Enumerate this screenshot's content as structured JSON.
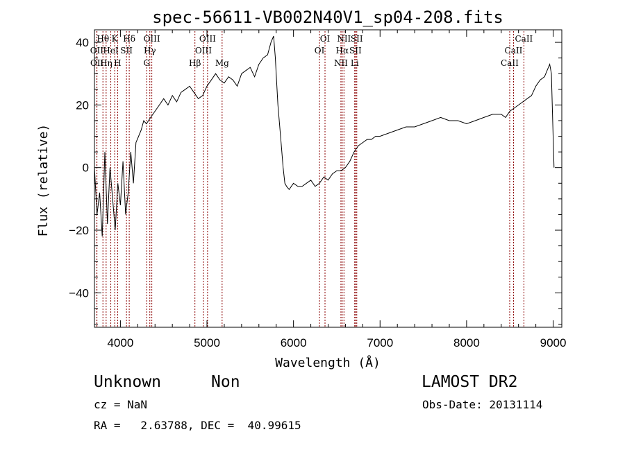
{
  "chart_data": {
    "type": "line",
    "title": "spec-56611-VB002N40V1_sp04-208.fits",
    "xlabel": "Wavelength (Å)",
    "ylabel": "Flux (relative)",
    "xlim": [
      3700,
      9100
    ],
    "ylim": [
      -51,
      44
    ],
    "xticks": [
      "4000",
      "5000",
      "6000",
      "7000",
      "8000",
      "9000"
    ],
    "xtick_values": [
      4000,
      5000,
      6000,
      7000,
      8000,
      9000
    ],
    "yticks": [
      "40",
      "20",
      "0",
      "−20",
      "−40"
    ],
    "ytick_values": [
      40,
      20,
      0,
      -20,
      -40
    ],
    "grid": false,
    "line_color": "#000000",
    "marker_color": "#8b0000",
    "series": [
      {
        "x": [
          3700,
          3730,
          3760,
          3790,
          3820,
          3850,
          3880,
          3910,
          3940,
          3970,
          4000,
          4030,
          4060,
          4090,
          4120,
          4150,
          4180,
          4210,
          4240,
          4270,
          4300,
          4350,
          4400,
          4450,
          4500,
          4550,
          4600,
          4650,
          4700,
          4750,
          4800,
          4850,
          4900,
          4950,
          5000,
          5050,
          5100,
          5150,
          5200,
          5250,
          5300,
          5350,
          5400,
          5450,
          5500,
          5550,
          5600,
          5650,
          5700,
          5740,
          5770,
          5790,
          5800,
          5820,
          5850,
          5880,
          5900,
          5920,
          5950,
          6000,
          6050,
          6100,
          6150,
          6200,
          6250,
          6300,
          6350,
          6400,
          6450,
          6500,
          6550,
          6600,
          6650,
          6700,
          6750,
          6800,
          6850,
          6900,
          6950,
          7000,
          7100,
          7200,
          7300,
          7400,
          7500,
          7600,
          7700,
          7800,
          7900,
          8000,
          8100,
          8200,
          8300,
          8400,
          8450,
          8500,
          8550,
          8600,
          8650,
          8700,
          8750,
          8800,
          8850,
          8900,
          8930,
          8960,
          8980,
          9000,
          9010
        ],
        "y": [
          0,
          -15,
          -8,
          -22,
          5,
          -18,
          0,
          -10,
          -20,
          -5,
          -12,
          2,
          -15,
          -8,
          5,
          -5,
          8,
          10,
          12,
          15,
          14,
          16,
          18,
          20,
          22,
          20,
          23,
          21,
          24,
          25,
          26,
          24,
          22,
          23,
          26,
          28,
          30,
          28,
          27,
          29,
          28,
          26,
          30,
          31,
          32,
          29,
          33,
          35,
          36,
          40,
          42,
          35,
          30,
          20,
          10,
          0,
          -5,
          -6,
          -7,
          -5,
          -6,
          -6,
          -5,
          -4,
          -6,
          -5,
          -3,
          -4,
          -2,
          -1,
          -1,
          0,
          2,
          5,
          7,
          8,
          9,
          9,
          10,
          10,
          11,
          12,
          13,
          13,
          14,
          15,
          16,
          15,
          15,
          14,
          15,
          16,
          17,
          17,
          16,
          18,
          19,
          20,
          21,
          22,
          23,
          26,
          28,
          29,
          31,
          33,
          30,
          10,
          0
        ]
      }
    ],
    "emission_lines": [
      {
        "label": "Hθ",
        "x": 3798,
        "row": 1
      },
      {
        "label": "Hη",
        "x": 3835,
        "row": 3
      },
      {
        "label": "OII",
        "x": 3727,
        "row": 2
      },
      {
        "label": "OII",
        "x": 3729,
        "row": 3
      },
      {
        "label": "HeI",
        "x": 3889,
        "row": 2
      },
      {
        "label": "K",
        "x": 3934,
        "row": 1
      },
      {
        "label": "H",
        "x": 3968,
        "row": 3
      },
      {
        "label": "SII",
        "x": 4070,
        "row": 2
      },
      {
        "label": "Hδ",
        "x": 4102,
        "row": 1
      },
      {
        "label": "G",
        "x": 4304,
        "row": 3
      },
      {
        "label": "Hγ",
        "x": 4340,
        "row": 2
      },
      {
        "label": "OIII",
        "x": 4363,
        "row": 1
      },
      {
        "label": "Hβ",
        "x": 4861,
        "row": 3
      },
      {
        "label": "OIII",
        "x": 4959,
        "row": 2
      },
      {
        "label": "OIII",
        "x": 5007,
        "row": 1
      },
      {
        "label": "Mg",
        "x": 5175,
        "row": 3
      },
      {
        "label": "OI",
        "x": 6300,
        "row": 2
      },
      {
        "label": "OI",
        "x": 6364,
        "row": 1
      },
      {
        "label": "NII",
        "x": 6548,
        "row": 3
      },
      {
        "label": "Hα",
        "x": 6563,
        "row": 2
      },
      {
        "label": "NII",
        "x": 6583,
        "row": 1
      },
      {
        "label": "Li",
        "x": 6707,
        "row": 3
      },
      {
        "label": "SII",
        "x": 6716,
        "row": 2
      },
      {
        "label": "SII",
        "x": 6731,
        "row": 1
      },
      {
        "label": "CaII",
        "x": 8498,
        "row": 3
      },
      {
        "label": "CaII",
        "x": 8542,
        "row": 2
      },
      {
        "label": "CaII",
        "x": 8662,
        "row": 1
      }
    ]
  },
  "info": {
    "class_label": "Unknown",
    "subclass_label": "Non",
    "survey_label": "LAMOST DR2",
    "cz_text": "cz = NaN",
    "obs_date_text": "Obs-Date: 20131114",
    "radec_text": "RA =   2.63788, DEC =  40.99615"
  }
}
